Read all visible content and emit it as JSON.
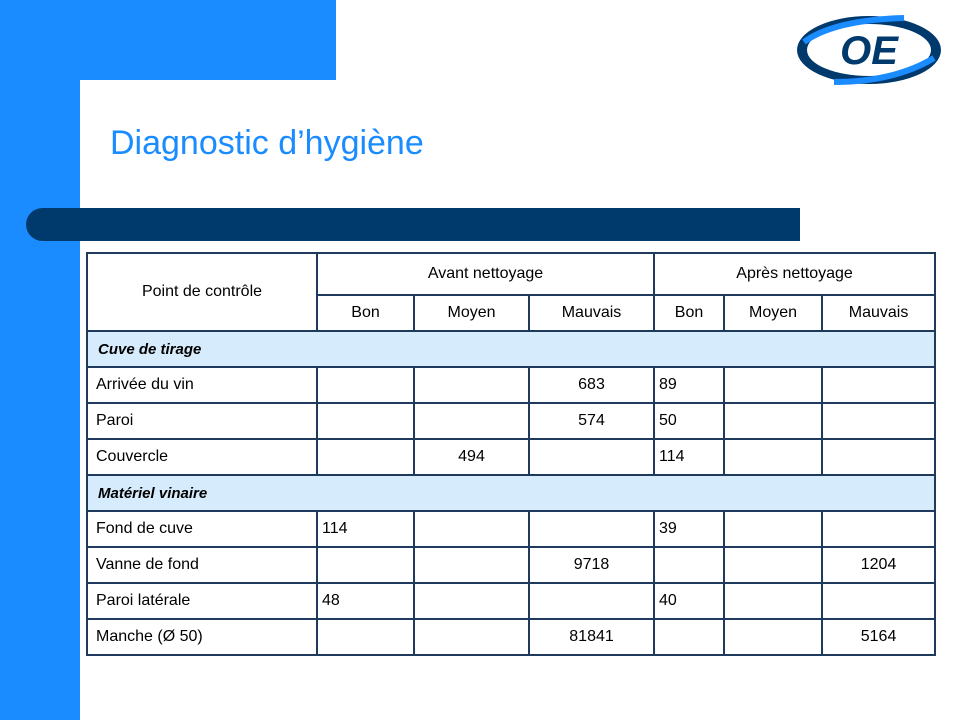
{
  "slide": {
    "title": "Diagnostic d’hygiène",
    "logo_text": "OE",
    "colors": {
      "accent": "#1a8cff",
      "dark_bar": "#00396b",
      "section_bg": "#d6ebfb",
      "table_border": "#1f3a5c"
    }
  },
  "table": {
    "header": {
      "point": "Point de contrôle",
      "before": "Avant nettoyage",
      "after": "Après nettoyage",
      "sub": [
        "Bon",
        "Moyen",
        "Mauvais",
        "Bon",
        "Moyen",
        "Mauvais"
      ]
    },
    "sections": [
      {
        "title": "Cuve de tirage",
        "rows": [
          {
            "label": "Arrivée du vin",
            "values": [
              "",
              "",
              "683",
              "89",
              "",
              ""
            ]
          },
          {
            "label": "Paroi",
            "values": [
              "",
              "",
              "574",
              "50",
              "",
              ""
            ]
          },
          {
            "label": "Couvercle",
            "values": [
              "",
              "494",
              "",
              "114",
              "",
              ""
            ]
          }
        ]
      },
      {
        "title": "Matériel vinaire",
        "rows": [
          {
            "label": "Fond de cuve",
            "values": [
              "114",
              "",
              "",
              "39",
              "",
              ""
            ]
          },
          {
            "label": "Vanne de fond",
            "values": [
              "",
              "",
              "9718",
              "",
              "",
              "1204"
            ]
          },
          {
            "label": "Paroi latérale",
            "values": [
              "48",
              "",
              "",
              "40",
              "",
              ""
            ]
          },
          {
            "label": "Manche (Ø 50)",
            "values": [
              "",
              "",
              "81841",
              "",
              "",
              "5164"
            ]
          }
        ]
      }
    ]
  }
}
